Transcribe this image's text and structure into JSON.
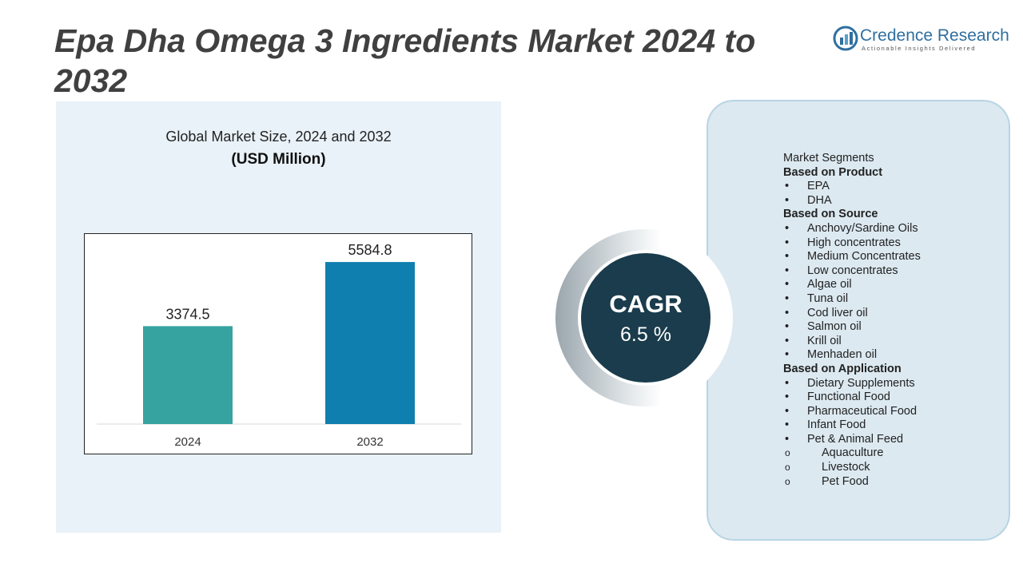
{
  "title": "Epa Dha Omega 3 Ingredients Market 2024 to 2032",
  "logo": {
    "name": "Credence Research",
    "tagline": "Actionable Insights Delivered"
  },
  "chart_data": {
    "type": "bar",
    "title": "Global Market Size, 2024 and 2032",
    "subtitle": "(USD Million)",
    "categories": [
      "2024",
      "2032"
    ],
    "values": [
      3374.5,
      5584.8
    ],
    "colors": [
      "#36a3a0",
      "#0f7fb0"
    ],
    "ylim": [
      0,
      6000
    ]
  },
  "cagr": {
    "label": "CAGR",
    "value": "6.5 %"
  },
  "segments": {
    "title": "Market Segments",
    "groups": [
      {
        "heading": "Based on Product",
        "items": [
          {
            "text": "EPA"
          },
          {
            "text": "DHA"
          }
        ]
      },
      {
        "heading": "Based on Source",
        "items": [
          {
            "text": "Anchovy/Sardine Oils"
          },
          {
            "text": "High concentrates"
          },
          {
            "text": "Medium Concentrates"
          },
          {
            "text": "Low concentrates"
          },
          {
            "text": "Algae oil"
          },
          {
            "text": "Tuna oil"
          },
          {
            "text": "Cod liver oil"
          },
          {
            "text": "Salmon oil"
          },
          {
            "text": "Krill oil"
          },
          {
            "text": "Menhaden oil"
          }
        ]
      },
      {
        "heading": "Based on Application",
        "items": [
          {
            "text": "Dietary Supplements"
          },
          {
            "text": "Functional Food"
          },
          {
            "text": "Pharmaceutical Food"
          },
          {
            "text": "Infant Food"
          },
          {
            "text": "Pet & Animal Feed",
            "sub": [
              "Aquaculture",
              "Livestock",
              "Pet Food"
            ]
          }
        ]
      }
    ]
  }
}
